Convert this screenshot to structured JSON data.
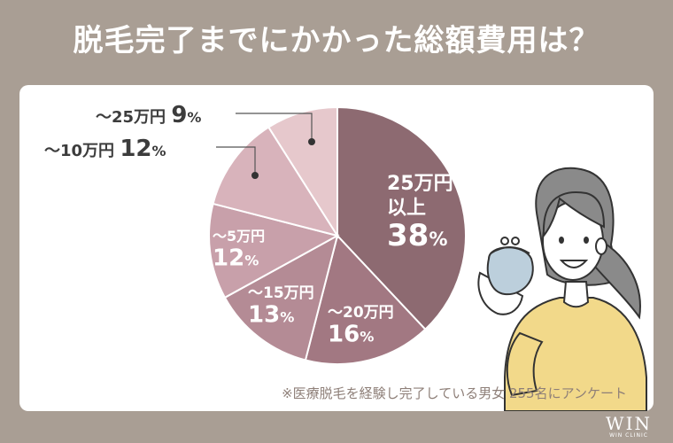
{
  "title": "脱毛完了までにかかった総額費用は？",
  "note": "※医療脱毛を経験し完了している男女 255名にアンケート",
  "brand": {
    "logo": "WIN",
    "sub": "WIN CLINIC"
  },
  "chart_data": {
    "type": "pie",
    "slices": [
      {
        "label_lines": [
          "25万円",
          "以上"
        ],
        "value": 38,
        "value_text": "38",
        "unit": "%",
        "color": "#8d6a71"
      },
      {
        "label_lines": [
          "〜20万円"
        ],
        "value": 16,
        "value_text": "16",
        "unit": "%",
        "color": "#a27882"
      },
      {
        "label_lines": [
          "〜15万円"
        ],
        "value": 13,
        "value_text": "13",
        "unit": "%",
        "color": "#b48b95"
      },
      {
        "label_lines": [
          "〜5万円"
        ],
        "value": 12,
        "value_text": "12",
        "unit": "%",
        "color": "#c8a0aa"
      },
      {
        "label_lines": [
          "〜10万円"
        ],
        "value": 12,
        "value_text": "12",
        "unit": "%",
        "color": "#d8b3bb"
      },
      {
        "label_lines": [
          "〜25万円"
        ],
        "value": 9,
        "value_text": "9",
        "unit": "%",
        "color": "#e6c8cc"
      }
    ],
    "start_angle_deg": 0,
    "direction": "clockwise"
  }
}
